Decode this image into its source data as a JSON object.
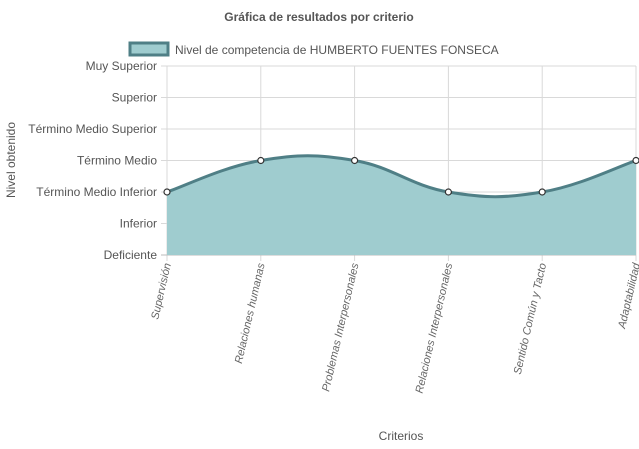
{
  "chart_data": {
    "type": "area",
    "title": "Gráfica de resultados por criterio",
    "xlabel": "Criterios",
    "ylabel": "Nivel obtenido",
    "y_levels": [
      "Deficiente",
      "Inferior",
      "Término Medio Inferior",
      "Término Medio",
      "Término Medio Superior",
      "Superior",
      "Muy Superior"
    ],
    "categories": [
      "Supervisión",
      "Relaciones humanas",
      "Problemas Interpersonales",
      "Relaciones Interpersonales",
      "Sentido Común y Tacto",
      "Adaptabilidad"
    ],
    "series": [
      {
        "name": "Nivel de competencia de HUMBERTO FUENTES FONSECA",
        "values": [
          "Término Medio Inferior",
          "Término Medio",
          "Término Medio",
          "Término Medio Inferior",
          "Término Medio Inferior",
          "Término Medio"
        ]
      }
    ],
    "grid": true,
    "legend": "top",
    "colors": {
      "fill": "#9fcccf",
      "line": "#4f7f86",
      "point_fill": "#ffffff",
      "point_stroke": "#333333",
      "grid": "#d9d9d9"
    }
  }
}
